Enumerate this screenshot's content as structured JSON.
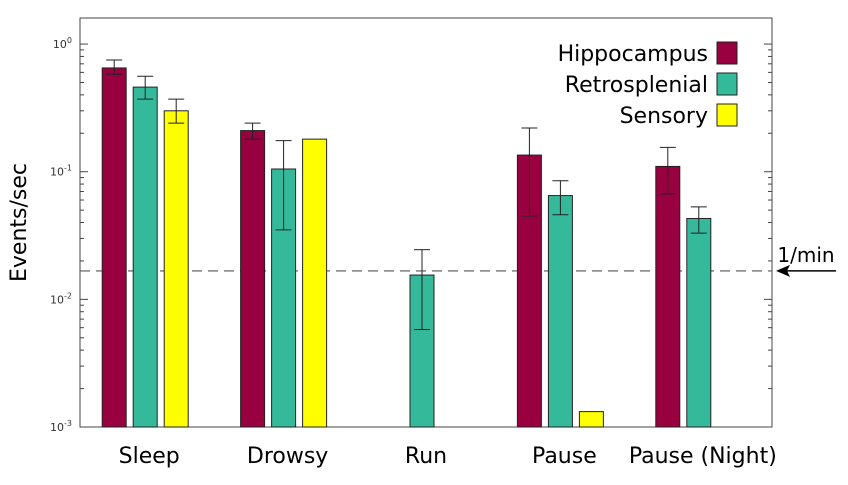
{
  "chart_data": {
    "type": "bar",
    "title": "",
    "xlabel": "",
    "ylabel": "Events/sec",
    "yscale": "log",
    "ylim": [
      0.001,
      1.6
    ],
    "ytick_labels": [
      {
        "value": 1,
        "base": "10",
        "exp": "0"
      },
      {
        "value": 0.1,
        "base": "10",
        "exp": "-1"
      },
      {
        "value": 0.01,
        "base": "10",
        "exp": "-2"
      },
      {
        "value": 0.001,
        "base": "10",
        "exp": "-3"
      }
    ],
    "grid": false,
    "legend_position": "top-right",
    "categories": [
      "Sleep",
      "Drowsy",
      "Run",
      "Pause",
      "Pause (Night)"
    ],
    "series": [
      {
        "name": "Hippocampus",
        "color": "#99003f",
        "values": [
          0.65,
          0.21,
          null,
          0.135,
          0.11
        ],
        "err_low": [
          0.58,
          0.18,
          null,
          0.045,
          0.067
        ],
        "err_high": [
          0.75,
          0.24,
          null,
          0.22,
          0.155
        ]
      },
      {
        "name": "Retrosplenial",
        "color": "#35b99b",
        "values": [
          0.46,
          0.105,
          0.0155,
          0.065,
          0.043
        ],
        "err_low": [
          0.37,
          0.035,
          0.0058,
          0.046,
          0.033
        ],
        "err_high": [
          0.56,
          0.175,
          0.0245,
          0.085,
          0.053
        ]
      },
      {
        "name": "Sensory",
        "color": "#ffff00",
        "values": [
          0.3,
          0.18,
          null,
          0.00132,
          null
        ],
        "err_low": [
          0.24,
          null,
          null,
          null,
          null
        ],
        "err_high": [
          0.37,
          null,
          null,
          null,
          null
        ]
      }
    ],
    "reference_line": {
      "value": 0.0167,
      "label": "1/min",
      "style": "dashed"
    }
  }
}
